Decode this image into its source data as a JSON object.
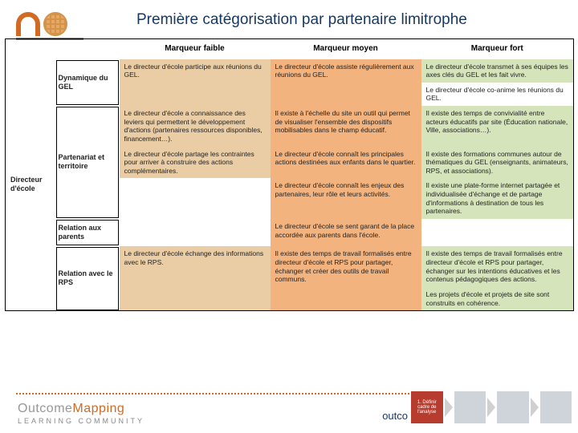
{
  "title": "Première catégorisation par partenaire limitrophe",
  "headers": {
    "c0": "",
    "c1": "",
    "faible": "Marqueur faible",
    "moyen": "Marqueur moyen",
    "fort": "Marqueur fort"
  },
  "rowgroup_label": "Directeur d'école",
  "categories": {
    "gel": "Dynamique du GEL",
    "part": "Partenariat et territoire",
    "par": "Relation aux parents",
    "rps": "Relation avec le RPS"
  },
  "cells": {
    "gel": {
      "faible": "Le directeur d'école participe aux réunions du GEL.",
      "moyen": "Le directeur d'école assiste régulièrement aux réunions du GEL.",
      "fort1": "Le directeur d'école transmet à ses équipes les axes clés du GEL et les fait vivre.",
      "fort2": "Le directeur d'école co-anime les réunions du GEL."
    },
    "part": {
      "faible1": "Le directeur d'école a connaissance des leviers qui permettent le développement d'actions (partenaires ressources disponibles, financement…).",
      "faible2": "Le directeur d'école partage les contraintes pour arriver à construire des actions complémentaires.",
      "moyen1": "Il existe à l'échelle du site un outil qui permet de visualiser l'ensemble des dispositifs mobilisables dans le champ éducatif.",
      "moyen2": "Le directeur d'école connaît les principales actions destinées aux enfants dans le quartier.",
      "moyen3": "Le directeur d'école connaît les enjeux des partenaires, leur rôle et leurs activités.",
      "fort1": "Il existe des temps de convivialité entre acteurs éducatifs par site (Éducation nationale, Ville, associations…).",
      "fort2": "Il existe des formations communes autour de thématiques du GEL (enseignants, animateurs, RPS, et associations).",
      "fort3": "Il existe une plate-forme internet partagée et individualisée d'échange et de partage d'informations à destination de tous les partenaires."
    },
    "par": {
      "moyen": "Le directeur d'école se sent garant de la place accordée aux parents dans l'école."
    },
    "rps": {
      "faible": "Le directeur d'école échange des informations avec le RPS.",
      "moyen": "Il existe des temps de travail formalisés entre directeur d'école et RPS pour partager, échanger et créer des outils de travail communs.",
      "fort1": "Il existe des temps de travail formalisés entre directeur d'école et RPS pour partager, échanger sur les intentions éducatives et les contenus pédagogiques des actions.",
      "fort2": "Les projets d'école et projets de site sont construits en cohérence."
    }
  },
  "footer": {
    "outcome": "Outcome",
    "mapping": "Mapping",
    "lc": "LEARNING   COMMUNITY",
    "outc": "outco"
  },
  "mini_steps": {
    "s1": "1. Définir cadre de l'analyse",
    "s2": "",
    "s3": "",
    "s4": ""
  },
  "colors": {
    "faible": "#eacda5",
    "moyen": "#f2b37e",
    "fort": "#d6e4bc",
    "accent": "#d36a24",
    "title": "#17375e"
  }
}
